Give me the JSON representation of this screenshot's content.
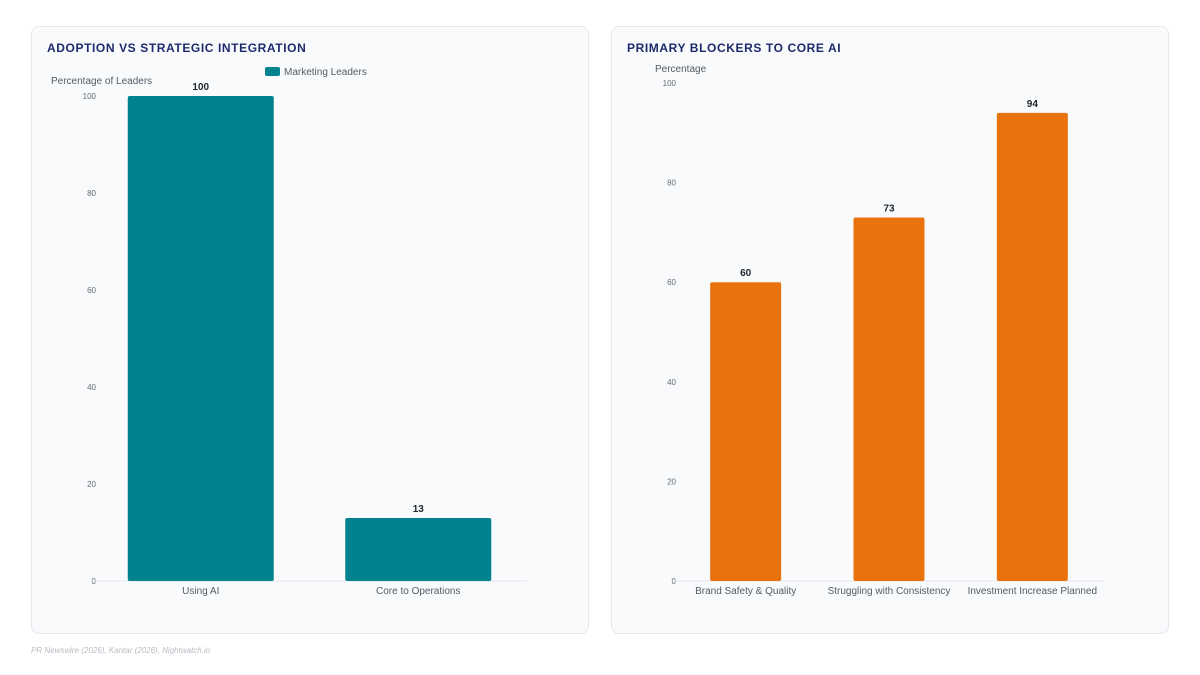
{
  "footer": {
    "source": "PR Newswire (2026), Kantar (2026), Nightwatch.io"
  },
  "chart_data": [
    {
      "type": "bar",
      "title": "ADOPTION VS STRATEGIC INTEGRATION",
      "ylabel": "Percentage of Leaders",
      "xlabel": "",
      "categories": [
        "Using AI",
        "Core to Operations"
      ],
      "series": [
        {
          "name": "Marketing Leaders",
          "values": [
            100,
            13
          ],
          "color": "#00838f"
        }
      ],
      "ylim": [
        0,
        100
      ],
      "yticks": [
        "0",
        "20",
        "40",
        "60",
        "80",
        "100"
      ],
      "data_labels": [
        "100",
        "13"
      ],
      "legend": "top-center",
      "grid": false
    },
    {
      "type": "bar",
      "title": "PRIMARY BLOCKERS TO CORE AI",
      "ylabel": "Percentage",
      "xlabel": "",
      "categories": [
        "Brand Safety & Quality",
        "Struggling with Consistency",
        "Investment Increase Planned"
      ],
      "series": [
        {
          "values": [
            60,
            73,
            94
          ],
          "color": "#e8720c"
        }
      ],
      "ylim": [
        0,
        100
      ],
      "yticks": [
        "0",
        "20",
        "40",
        "60",
        "80",
        "100"
      ],
      "data_labels": [
        "60",
        "73",
        "94"
      ],
      "legend": "none",
      "grid": false
    }
  ]
}
